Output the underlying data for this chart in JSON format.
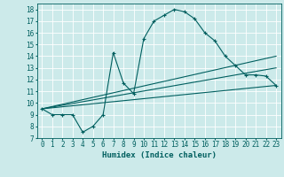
{
  "xlabel": "Humidex (Indice chaleur)",
  "bg_color": "#cceaea",
  "grid_color": "#ffffff",
  "line_color": "#005f5f",
  "xlim": [
    -0.5,
    23.5
  ],
  "ylim": [
    7,
    18.5
  ],
  "xticks": [
    0,
    1,
    2,
    3,
    4,
    5,
    6,
    7,
    8,
    9,
    10,
    11,
    12,
    13,
    14,
    15,
    16,
    17,
    18,
    19,
    20,
    21,
    22,
    23
  ],
  "yticks": [
    7,
    8,
    9,
    10,
    11,
    12,
    13,
    14,
    15,
    16,
    17,
    18
  ],
  "line1_x": [
    0,
    1,
    2,
    3,
    4,
    5,
    6,
    7,
    8,
    9,
    10,
    11,
    12,
    13,
    14,
    15,
    16,
    17,
    18,
    19,
    20,
    21,
    22,
    23
  ],
  "line1_y": [
    9.5,
    9.0,
    9.0,
    9.0,
    7.5,
    8.0,
    9.0,
    14.3,
    11.7,
    10.8,
    15.5,
    17.0,
    17.5,
    18.0,
    17.8,
    17.2,
    16.0,
    15.3,
    14.0,
    13.2,
    12.4,
    12.4,
    12.3,
    11.5
  ],
  "line2_x": [
    0,
    23
  ],
  "line2_y": [
    9.5,
    11.5
  ],
  "line3_x": [
    0,
    23
  ],
  "line3_y": [
    9.5,
    13.0
  ],
  "line4_x": [
    0,
    23
  ],
  "line4_y": [
    9.5,
    14.0
  ]
}
